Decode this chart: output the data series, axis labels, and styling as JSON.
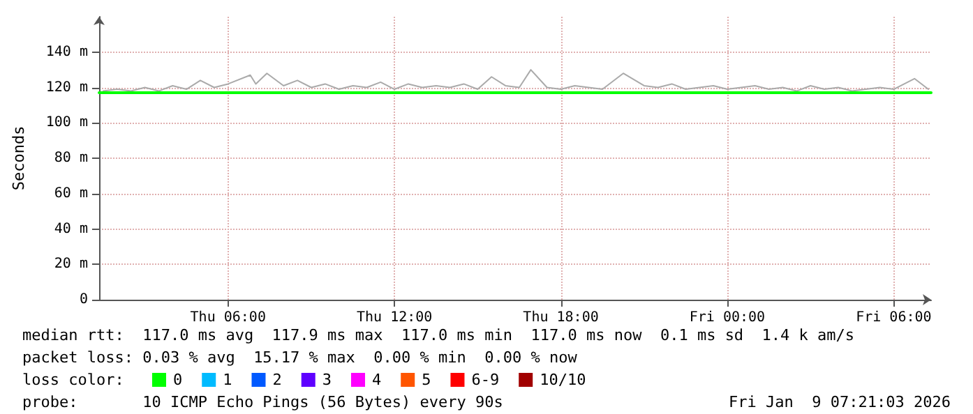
{
  "chart_data": {
    "type": "line",
    "ylabel": "Seconds",
    "xlim": [
      "--01-08T01:21",
      "--01-09T07:21"
    ],
    "xticks": [
      {
        "value": "--01-08T06:00",
        "label": "Thu 06:00"
      },
      {
        "value": "--01-08T12:00",
        "label": "Thu 12:00"
      },
      {
        "value": "--01-08T18:00",
        "label": "Thu 18:00"
      },
      {
        "value": "--01-09T00:00",
        "label": "Fri 00:00"
      },
      {
        "value": "--01-09T06:00",
        "label": "Fri 06:00"
      }
    ],
    "ylim": [
      0,
      160
    ],
    "yticks": [
      0,
      {
        "value": 20,
        "label": "20 m"
      },
      {
        "value": 40,
        "label": "40 m"
      },
      {
        "value": 60,
        "label": "60 m"
      },
      {
        "value": 80,
        "label": "80 m"
      },
      {
        "value": 100,
        "label": "100 m"
      },
      {
        "value": 120,
        "label": "120 m"
      },
      {
        "value": 140,
        "label": "140 m"
      }
    ],
    "grid": true,
    "legend": "bottom",
    "marker": "none",
    "line_style": "solid",
    "series": [
      {
        "color": "#aaaaaa",
        "x": [
          "--01-08T01:30",
          "--01-08T02:00",
          "--01-08T02:30",
          "--01-08T03:00",
          "--01-08T03:30",
          "--01-08T04:00",
          "--01-08T04:30",
          "--01-08T05:00",
          "--01-08T05:30",
          "--01-08T06:00",
          "--01-08T06:48",
          "--01-08T07:00",
          "--01-08T07:24",
          "--01-08T08:00",
          "--01-08T08:30",
          "--01-08T09:00",
          "--01-08T09:30",
          "--01-08T10:00",
          "--01-08T10:30",
          "--01-08T11:00",
          "--01-08T11:30",
          "--01-08T12:00",
          "--01-08T12:30",
          "--01-08T13:00",
          "--01-08T13:30",
          "--01-08T14:00",
          "--01-08T14:30",
          "--01-08T15:00",
          "--01-08T15:30",
          "--01-08T16:00",
          "--01-08T16:30",
          "--01-08T16:55",
          "--01-08T17:30",
          "--01-08T18:00",
          "--01-08T18:30",
          "--01-08T19:00",
          "--01-08T19:30",
          "--01-08T20:15",
          "--01-08T21:00",
          "--01-08T21:30",
          "--01-08T22:00",
          "--01-08T22:30",
          "--01-08T23:00",
          "--01-08T23:30",
          "--01-09T00:00",
          "--01-09T00:30",
          "--01-09T01:00",
          "--01-09T01:30",
          "--01-09T02:00",
          "--01-09T02:30",
          "--01-09T03:00",
          "--01-09T03:30",
          "--01-09T04:00",
          "--01-09T04:30",
          "--01-09T05:00",
          "--01-09T05:30",
          "--01-09T06:00",
          "--01-09T06:45",
          "--01-09T07:15"
        ],
        "values": [
          118,
          119,
          118,
          120,
          118,
          121,
          119,
          124,
          120,
          122,
          127,
          122,
          128,
          121,
          124,
          120,
          122,
          119,
          121,
          120,
          123,
          119,
          122,
          120,
          121,
          120,
          122,
          119,
          126,
          121,
          120,
          130,
          120,
          119,
          121,
          120,
          119,
          128,
          121,
          120,
          122,
          119,
          120,
          121,
          119,
          120,
          121,
          119,
          120,
          118,
          121,
          119,
          120,
          118,
          119,
          120,
          119,
          125,
          119
        ]
      },
      {
        "name": "0",
        "color": "#00ff00",
        "x": [
          "--01-08T01:21",
          "--01-08T12:00",
          "--01-09T00:00",
          "--01-09T07:21"
        ],
        "values": [
          117,
          117,
          117,
          117
        ]
      },
      {
        "name": "1",
        "color": "#00bbff"
      },
      {
        "name": "2",
        "color": "#0059ff"
      },
      {
        "name": "3",
        "color": "#5e00ff"
      },
      {
        "name": "4",
        "color": "#ff00ff"
      },
      {
        "name": "5",
        "color": "#ff5500"
      },
      {
        "name": "6-9",
        "color": "#ff0000"
      },
      {
        "name": "10/10",
        "color": "#a10000"
      }
    ],
    "annotations": [
      "median rtt:  117.0 ms avg  117.9 ms max  117.0 ms min  117.0 ms now  0.1 ms sd  1.4 k am/s",
      "packet loss: 0.03 % avg  15.17 % max  0.00 % min  0.00 % now",
      "loss color:",
      "probe:       10 ICMP Echo Pings (56 Bytes) every 90s",
      "Fri Jan  9 07:21:03 2026"
    ]
  }
}
